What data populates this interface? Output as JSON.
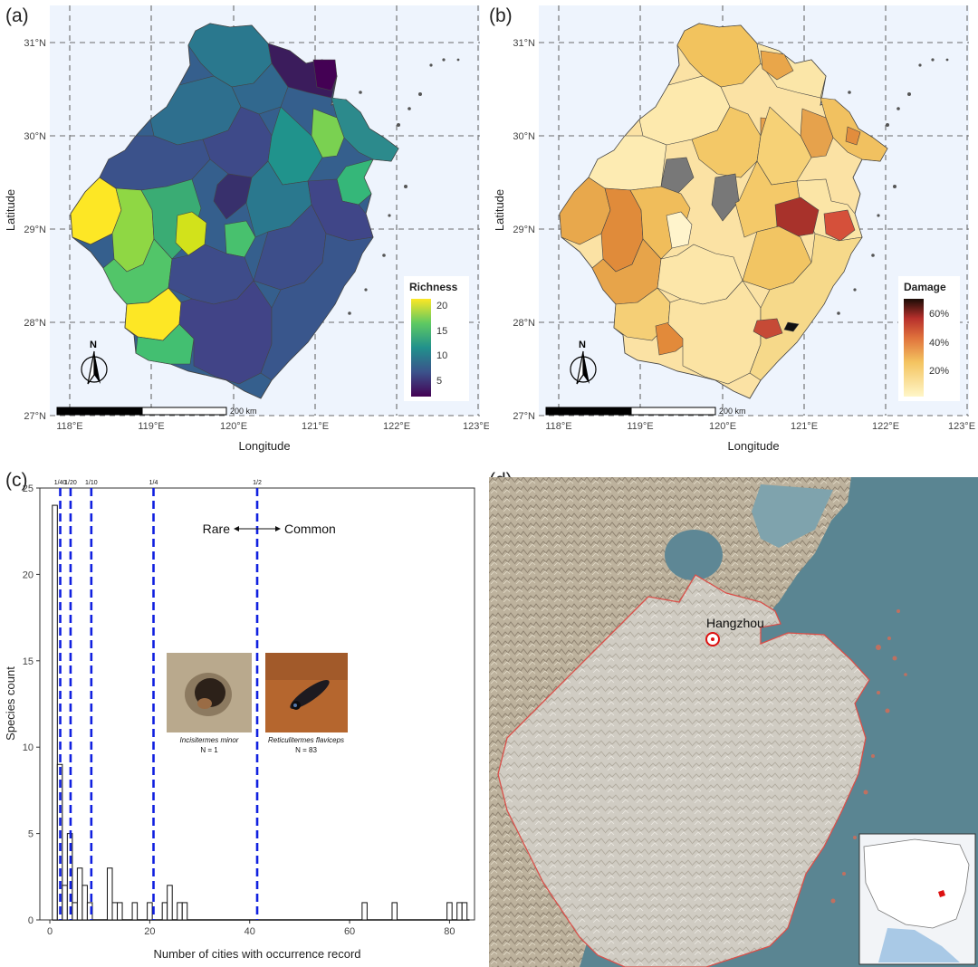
{
  "panels": {
    "a": {
      "letter": "(a)",
      "xlabel": "Longitude",
      "ylabel": "Latitude",
      "x_ticks": [
        "118°E",
        "119°E",
        "120°E",
        "121°E",
        "122°E",
        "123°E"
      ],
      "y_ticks": [
        "27°N",
        "28°N",
        "29°N",
        "30°N",
        "31°N"
      ],
      "legend": {
        "title": "Richness",
        "ticks": [
          "20",
          "15",
          "10",
          "5"
        ],
        "range": [
          2,
          21
        ],
        "palette": "viridis"
      },
      "scalebar": "200 km",
      "north": "N"
    },
    "b": {
      "letter": "(b)",
      "xlabel": "Longitude",
      "ylabel": "Latitude",
      "x_ticks": [
        "118°E",
        "119°E",
        "120°E",
        "121°E",
        "122°E",
        "123°E"
      ],
      "y_ticks": [
        "27°N",
        "28°N",
        "29°N",
        "30°N",
        "31°N"
      ],
      "legend": {
        "title": "Damage",
        "ticks": [
          "60%",
          "40%",
          "20%"
        ],
        "range": [
          0,
          70
        ],
        "palette": "yellow-orange-red-black"
      },
      "scalebar": "200 km",
      "north": "N"
    },
    "c": {
      "letter": "(c)",
      "annotation_left": "Rare",
      "annotation_right": "Common",
      "species": [
        {
          "name": "Incisitermes minor",
          "count": "N = 1"
        },
        {
          "name": "Reticulitermes flaviceps",
          "count": "N = 83"
        }
      ]
    },
    "d": {
      "letter": "(d)",
      "city": "Hangzhou"
    }
  },
  "chart_data": {
    "type": "bar",
    "xlabel": "Number of cities with occurrence record",
    "ylabel": "Species count",
    "xlim": [
      -2,
      85
    ],
    "ylim": [
      0,
      25
    ],
    "x_ticks": [
      0,
      20,
      40,
      60,
      80
    ],
    "y_ticks": [
      0,
      5,
      10,
      15,
      20,
      25
    ],
    "bin_width": 1,
    "bins": [
      {
        "x": 1,
        "count": 24
      },
      {
        "x": 2,
        "count": 9
      },
      {
        "x": 3,
        "count": 2
      },
      {
        "x": 4,
        "count": 5
      },
      {
        "x": 5,
        "count": 1
      },
      {
        "x": 6,
        "count": 3
      },
      {
        "x": 7,
        "count": 2
      },
      {
        "x": 8,
        "count": 1
      },
      {
        "x": 12,
        "count": 3
      },
      {
        "x": 13,
        "count": 1
      },
      {
        "x": 14,
        "count": 1
      },
      {
        "x": 17,
        "count": 1
      },
      {
        "x": 20,
        "count": 1
      },
      {
        "x": 23,
        "count": 1
      },
      {
        "x": 24,
        "count": 2
      },
      {
        "x": 26,
        "count": 1
      },
      {
        "x": 27,
        "count": 1
      },
      {
        "x": 63,
        "count": 1
      },
      {
        "x": 69,
        "count": 1
      },
      {
        "x": 80,
        "count": 1
      },
      {
        "x": 82,
        "count": 1
      },
      {
        "x": 83,
        "count": 1
      }
    ],
    "thresholds": [
      {
        "x": 2.08,
        "label": "1/40"
      },
      {
        "x": 4.15,
        "label": "1/20"
      },
      {
        "x": 8.3,
        "label": "1/10"
      },
      {
        "x": 20.75,
        "label": "1/4"
      },
      {
        "x": 41.5,
        "label": "1/2"
      }
    ],
    "threshold_color": "#1020e0"
  }
}
